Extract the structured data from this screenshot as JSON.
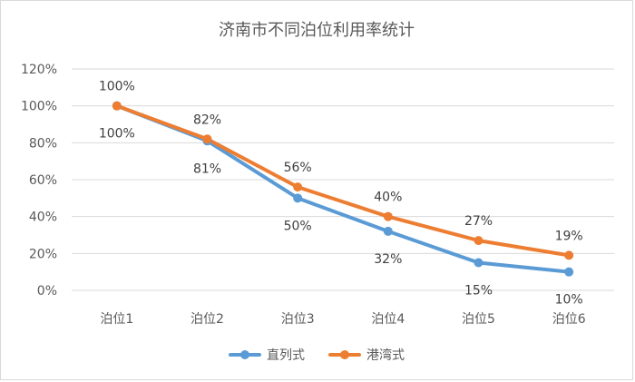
{
  "chart_data": {
    "type": "line",
    "title": "济南市不同泊位利用率统计",
    "categories": [
      "泊位1",
      "泊位2",
      "泊位3",
      "泊位4",
      "泊位5",
      "泊位6"
    ],
    "y_ticks": [
      "0%",
      "20%",
      "40%",
      "60%",
      "80%",
      "100%",
      "120%"
    ],
    "ylim": [
      0,
      120
    ],
    "grid": true,
    "legend_position": "bottom",
    "series": [
      {
        "name": "直列式",
        "color": "#5b9bd5",
        "values": [
          100,
          81,
          50,
          32,
          15,
          10
        ],
        "labels": [
          "100%",
          "81%",
          "50%",
          "32%",
          "15%",
          "10%"
        ]
      },
      {
        "name": "港湾式",
        "color": "#ed7d31",
        "values": [
          100,
          82,
          56,
          40,
          27,
          19
        ],
        "labels": [
          "100%",
          "82%",
          "56%",
          "40%",
          "27%",
          "19%"
        ]
      }
    ]
  }
}
